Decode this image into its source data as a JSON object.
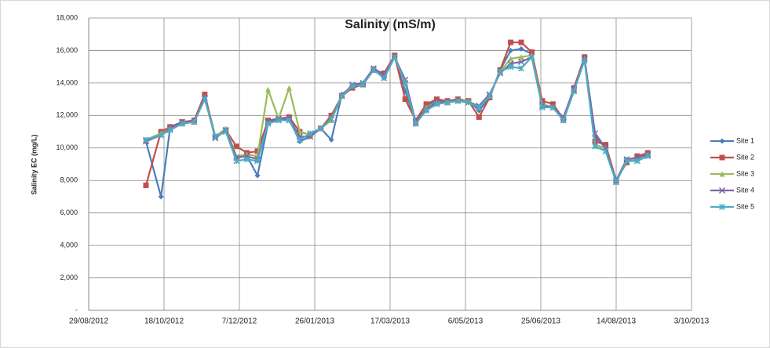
{
  "chart_data": {
    "type": "line",
    "title": "Salinity (mS/m)",
    "y_label": "Salinity EC (mg/L)",
    "x": [
      "2012-10-06",
      "2012-10-16",
      "2012-10-22",
      "2012-10-30",
      "2012-11-07",
      "2012-11-14",
      "2012-11-21",
      "2012-11-28",
      "2012-12-05",
      "2012-12-12",
      "2012-12-19",
      "2012-12-26",
      "2013-01-02",
      "2013-01-09",
      "2013-01-16",
      "2013-01-23",
      "2013-01-30",
      "2013-02-06",
      "2013-02-13",
      "2013-02-20",
      "2013-02-27",
      "2013-03-06",
      "2013-03-13",
      "2013-03-20",
      "2013-03-27",
      "2013-04-03",
      "2013-04-10",
      "2013-04-17",
      "2013-04-24",
      "2013-05-01",
      "2013-05-08",
      "2013-05-15",
      "2013-05-22",
      "2013-05-29",
      "2013-06-05",
      "2013-06-12",
      "2013-06-19",
      "2013-06-26",
      "2013-07-03",
      "2013-07-10",
      "2013-07-17",
      "2013-07-24",
      "2013-07-31",
      "2013-08-07",
      "2013-08-14",
      "2013-08-21",
      "2013-08-28",
      "2013-09-04"
    ],
    "series": [
      {
        "name": "Site 1",
        "color": "#4a7ebb",
        "marker": "diamond",
        "values": [
          10400,
          7000,
          11200,
          11600,
          11600,
          13200,
          10700,
          11100,
          9400,
          9500,
          8300,
          11500,
          11800,
          11800,
          10400,
          10700,
          11200,
          10500,
          13300,
          13800,
          13900,
          14900,
          14300,
          15600,
          13500,
          11600,
          12600,
          12900,
          12900,
          12900,
          12900,
          12300,
          13100,
          14800,
          16000,
          16100,
          15800,
          12600,
          12500,
          11800,
          13700,
          15500,
          10700,
          10000,
          8000,
          9300,
          9400,
          9600
        ]
      },
      {
        "name": "Site 2",
        "color": "#c0504d",
        "marker": "square",
        "values": [
          7700,
          11000,
          11300,
          11600,
          11700,
          13300,
          10700,
          11100,
          10100,
          9700,
          9800,
          11700,
          11800,
          11900,
          11000,
          10800,
          11200,
          12000,
          13200,
          13700,
          13900,
          14800,
          14600,
          15700,
          13000,
          11700,
          12700,
          13000,
          12900,
          13000,
          12900,
          11900,
          13100,
          14800,
          16500,
          16500,
          15900,
          12900,
          12700,
          11800,
          13700,
          15600,
          10400,
          10200,
          8000,
          9100,
          9500,
          9700
        ]
      },
      {
        "name": "Site 3",
        "color": "#9bbb59",
        "marker": "triangle",
        "values": [
          10500,
          10900,
          11200,
          11500,
          11600,
          13100,
          10700,
          11200,
          9500,
          9600,
          9500,
          13600,
          11800,
          13700,
          11000,
          10800,
          11200,
          11700,
          13200,
          13900,
          14000,
          14900,
          14500,
          15600,
          14000,
          11500,
          12500,
          12800,
          12800,
          12900,
          12900,
          12500,
          13200,
          14700,
          15500,
          15600,
          15700,
          12700,
          12500,
          11700,
          13500,
          15500,
          10200,
          10000,
          7900,
          9300,
          9300,
          9600
        ]
      },
      {
        "name": "Site 4",
        "color": "#8064a2",
        "marker": "x",
        "values": [
          10400,
          10800,
          11200,
          11600,
          11600,
          13100,
          10600,
          11100,
          9400,
          9500,
          9300,
          11600,
          11800,
          11800,
          10700,
          10700,
          11200,
          11800,
          13200,
          13900,
          14000,
          14900,
          14500,
          15600,
          14200,
          11600,
          12400,
          12800,
          12800,
          12900,
          12800,
          12600,
          13300,
          14600,
          15200,
          15300,
          15600,
          12600,
          12500,
          11900,
          13600,
          15500,
          10900,
          10000,
          8000,
          9300,
          9400,
          9600
        ]
      },
      {
        "name": "Site 5",
        "color": "#4bacc6",
        "marker": "star",
        "values": [
          10500,
          10800,
          11100,
          11500,
          11600,
          13000,
          10700,
          11000,
          9200,
          9300,
          9200,
          11500,
          11700,
          11700,
          10500,
          10900,
          11200,
          11800,
          13200,
          13800,
          13900,
          14800,
          14300,
          15600,
          14000,
          11500,
          12300,
          12700,
          12800,
          12900,
          12800,
          12500,
          13200,
          14700,
          15000,
          14900,
          15600,
          12500,
          12500,
          11700,
          13500,
          15400,
          10100,
          9800,
          7900,
          9200,
          9200,
          9500
        ]
      }
    ],
    "xlim": [
      "2012-08-29",
      "2013-10-03"
    ],
    "xticks": [
      {
        "value": "2012-08-29",
        "label": "29/08/2012"
      },
      {
        "value": "2012-10-18",
        "label": "18/10/2012"
      },
      {
        "value": "2012-12-07",
        "label": "7/12/2012"
      },
      {
        "value": "2013-01-26",
        "label": "26/01/2013"
      },
      {
        "value": "2013-03-17",
        "label": "17/03/2013"
      },
      {
        "value": "2013-05-06",
        "label": "6/05/2013"
      },
      {
        "value": "2013-06-25",
        "label": "25/06/2013"
      },
      {
        "value": "2013-08-14",
        "label": "14/08/2013"
      },
      {
        "value": "2013-10-03",
        "label": "3/10/2013"
      }
    ],
    "ylim": [
      0,
      18000
    ],
    "yticks": [
      {
        "value": 0,
        "label": "-"
      },
      {
        "value": 2000,
        "label": "2,000"
      },
      {
        "value": 4000,
        "label": "4,000"
      },
      {
        "value": 6000,
        "label": "6,000"
      },
      {
        "value": 8000,
        "label": "8,000"
      },
      {
        "value": 10000,
        "label": "10,000"
      },
      {
        "value": 12000,
        "label": "12,000"
      },
      {
        "value": 14000,
        "label": "14,000"
      },
      {
        "value": 16000,
        "label": "16,000"
      },
      {
        "value": 18000,
        "label": "18,000"
      }
    ],
    "grid": true,
    "legend": "right"
  }
}
